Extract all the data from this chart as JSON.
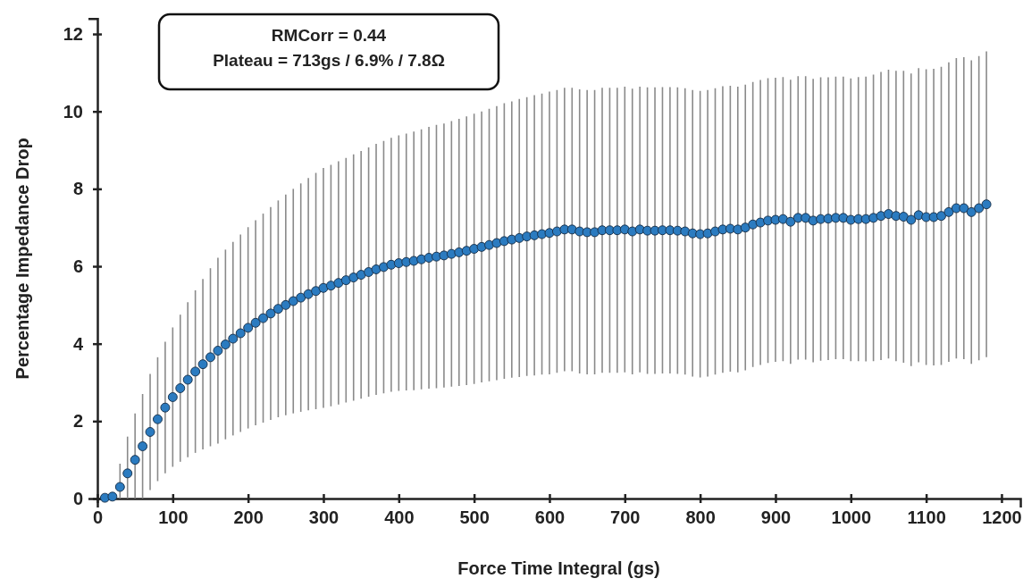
{
  "chart_data": {
    "type": "scatter",
    "xlabel": "Force Time Integral (gs)",
    "ylabel": "Percentage Impedance Drop",
    "annotations": [
      "RMCorr = 0.44",
      "Plateau = 713gs / 6.9% / 7.8Ω"
    ],
    "xlim": [
      0,
      1225
    ],
    "xticks": [
      0,
      100,
      200,
      300,
      400,
      500,
      600,
      700,
      800,
      900,
      1000,
      1100,
      1200
    ],
    "ylim": [
      0,
      12.4
    ],
    "yticks": [
      0,
      2,
      4,
      6,
      8,
      10,
      12
    ],
    "grid": false,
    "marker": "circle",
    "x": [
      10,
      20,
      30,
      40,
      50,
      60,
      70,
      80,
      90,
      100,
      110,
      120,
      130,
      140,
      150,
      160,
      170,
      180,
      190,
      200,
      210,
      220,
      230,
      240,
      250,
      260,
      270,
      280,
      290,
      300,
      310,
      320,
      330,
      340,
      350,
      360,
      370,
      380,
      390,
      400,
      410,
      420,
      430,
      440,
      450,
      460,
      470,
      480,
      490,
      500,
      510,
      520,
      530,
      540,
      550,
      560,
      570,
      580,
      590,
      600,
      610,
      620,
      630,
      640,
      650,
      660,
      670,
      680,
      690,
      700,
      710,
      720,
      730,
      740,
      750,
      760,
      770,
      780,
      790,
      800,
      810,
      820,
      830,
      840,
      850,
      860,
      870,
      880,
      890,
      900,
      910,
      920,
      930,
      940,
      950,
      960,
      970,
      980,
      990,
      1000,
      1010,
      1020,
      1030,
      1040,
      1050,
      1060,
      1070,
      1080,
      1090,
      1100,
      1110,
      1120,
      1130,
      1140,
      1150,
      1160,
      1170,
      1180
    ],
    "series": [
      {
        "color": "#2b7bc0",
        "values": [
          0.02,
          0.05,
          0.3,
          0.65,
          1.0,
          1.35,
          1.72,
          2.05,
          2.35,
          2.62,
          2.85,
          3.07,
          3.28,
          3.47,
          3.65,
          3.82,
          3.98,
          4.13,
          4.27,
          4.41,
          4.54,
          4.66,
          4.78,
          4.9,
          5.0,
          5.1,
          5.19,
          5.28,
          5.36,
          5.44,
          5.5,
          5.57,
          5.64,
          5.71,
          5.78,
          5.85,
          5.92,
          5.98,
          6.04,
          6.08,
          6.11,
          6.14,
          6.18,
          6.22,
          6.25,
          6.28,
          6.32,
          6.36,
          6.4,
          6.45,
          6.5,
          6.55,
          6.6,
          6.65,
          6.69,
          6.73,
          6.77,
          6.8,
          6.83,
          6.86,
          6.9,
          6.95,
          6.95,
          6.9,
          6.88,
          6.88,
          6.93,
          6.93,
          6.93,
          6.95,
          6.9,
          6.95,
          6.92,
          6.92,
          6.93,
          6.93,
          6.92,
          6.9,
          6.85,
          6.83,
          6.85,
          6.9,
          6.95,
          6.97,
          6.95,
          7.0,
          7.08,
          7.13,
          7.18,
          7.2,
          7.22,
          7.15,
          7.25,
          7.25,
          7.18,
          7.22,
          7.23,
          7.25,
          7.25,
          7.2,
          7.22,
          7.22,
          7.25,
          7.3,
          7.35,
          7.3,
          7.28,
          7.2,
          7.32,
          7.27,
          7.27,
          7.3,
          7.4,
          7.5,
          7.5,
          7.4,
          7.5,
          7.6
        ],
        "errors": [
          null,
          null,
          [
            0,
            0.9
          ],
          [
            0,
            1.6
          ],
          [
            0,
            2.2
          ],
          1.35,
          1.5,
          1.6,
          1.7,
          1.8,
          1.9,
          2.0,
          2.1,
          2.2,
          2.3,
          2.4,
          2.45,
          2.5,
          2.55,
          2.6,
          2.65,
          2.7,
          2.75,
          2.8,
          2.85,
          2.9,
          2.95,
          3.0,
          3.05,
          3.1,
          3.12,
          3.14,
          3.16,
          3.18,
          3.2,
          3.22,
          3.24,
          3.26,
          3.28,
          3.3,
          3.32,
          3.34,
          3.36,
          3.38,
          3.4,
          3.41,
          3.43,
          3.45,
          3.47,
          3.49,
          3.5,
          3.52,
          3.54,
          3.56,
          3.57,
          3.59,
          3.6,
          3.62,
          3.63,
          3.65,
          3.65,
          3.66,
          3.66,
          3.67,
          3.67,
          3.67,
          3.68,
          3.68,
          3.68,
          3.69,
          3.69,
          3.69,
          3.7,
          3.7,
          3.7,
          3.7,
          3.7,
          3.7,
          3.7,
          3.7,
          3.7,
          3.7,
          3.7,
          3.69,
          3.69,
          3.69,
          3.68,
          3.68,
          3.68,
          3.67,
          3.67,
          3.67,
          3.66,
          3.66,
          3.66,
          3.66,
          3.65,
          3.65,
          3.65,
          3.65,
          3.67,
          3.68,
          3.7,
          3.72,
          3.73,
          3.75,
          3.77,
          3.78,
          3.8,
          3.82,
          3.83,
          3.85,
          3.87,
          3.88,
          3.9,
          3.92,
          3.93,
          3.95
        ]
      }
    ]
  }
}
